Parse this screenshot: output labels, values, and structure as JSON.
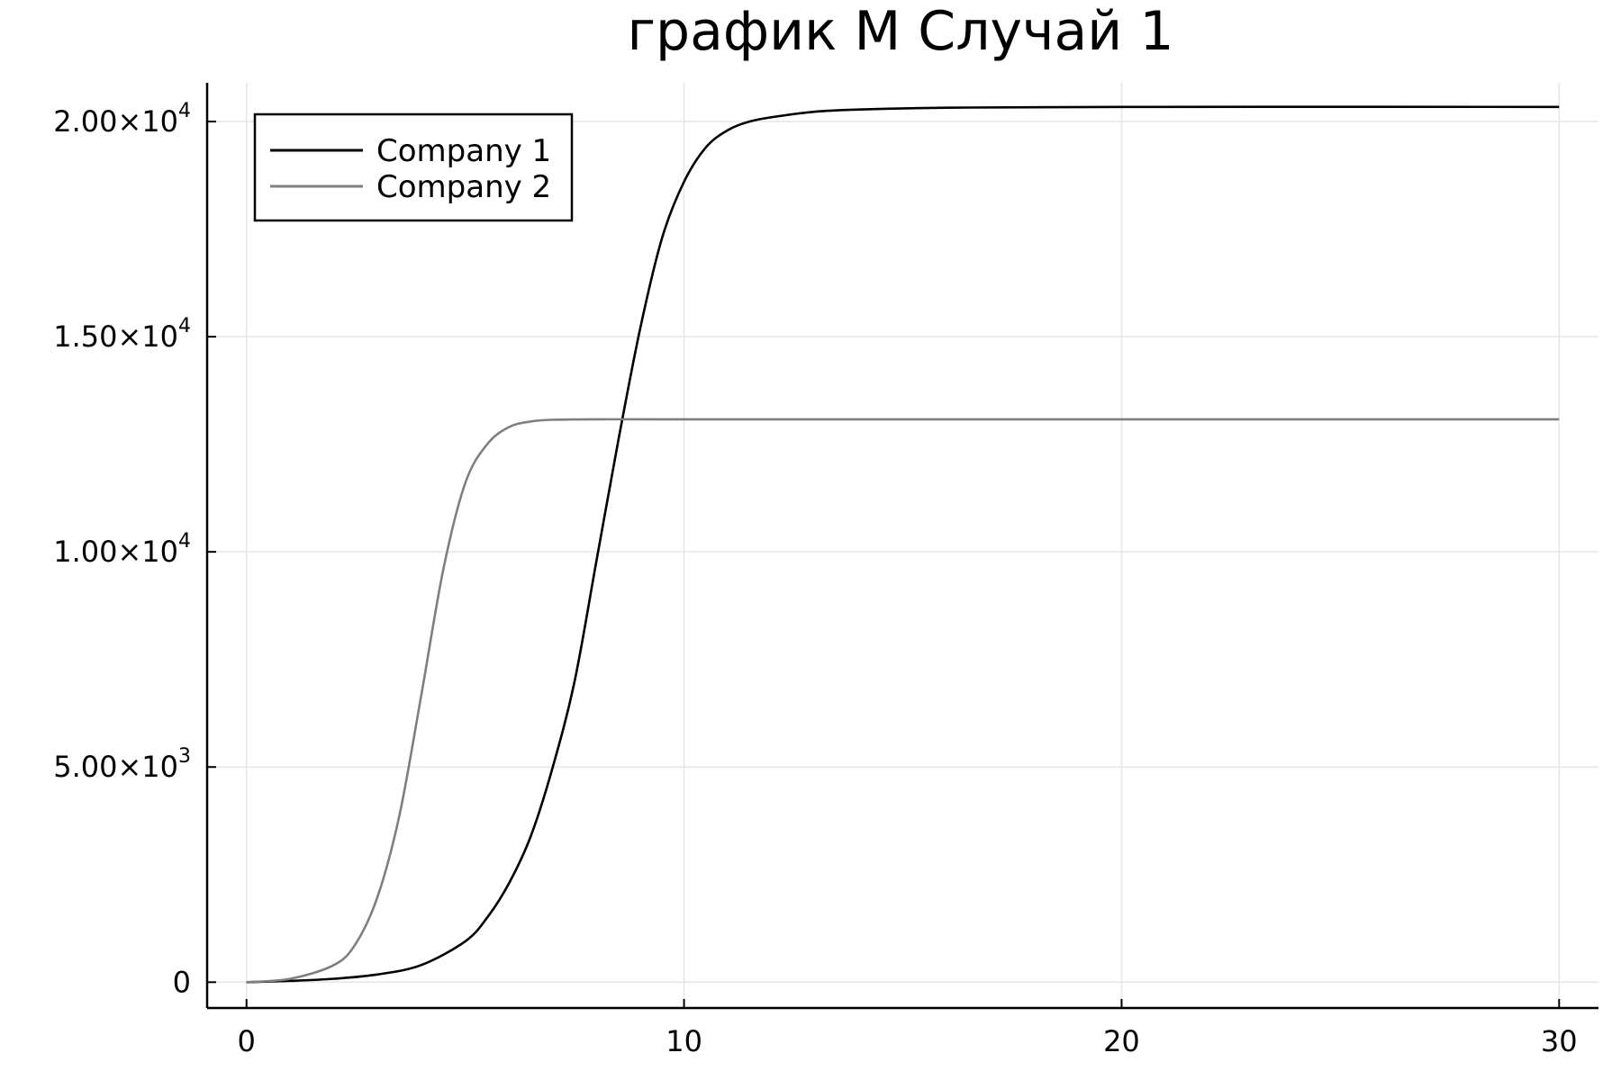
{
  "chart_data": {
    "type": "line",
    "title": "график M Случай 1",
    "xlabel": "",
    "ylabel": "",
    "xlim": [
      -0.9,
      30.9
    ],
    "ylim": [
      -600,
      20900
    ],
    "x_ticks": [
      {
        "value": 0,
        "label": "0"
      },
      {
        "value": 10,
        "label": "10"
      },
      {
        "value": 20,
        "label": "20"
      },
      {
        "value": 30,
        "label": "30"
      }
    ],
    "y_ticks": [
      {
        "value": 0,
        "label": "0",
        "exp": ""
      },
      {
        "value": 5000,
        "label": "5.00×10",
        "exp": "3"
      },
      {
        "value": 10000,
        "label": "1.00×10",
        "exp": "4"
      },
      {
        "value": 15000,
        "label": "1.50×10",
        "exp": "4"
      },
      {
        "value": 20000,
        "label": "2.00×10",
        "exp": "4"
      }
    ],
    "grid": true,
    "legend": {
      "position": "top-left"
    },
    "series": [
      {
        "name": "Company 1",
        "color": "#000000",
        "x": [
          0,
          1,
          2,
          3,
          4,
          5,
          5.5,
          6,
          6.5,
          7,
          7.5,
          8,
          8.5,
          9,
          9.5,
          10,
          10.5,
          11,
          11.5,
          12,
          13,
          14,
          16,
          20,
          30
        ],
        "y": [
          0,
          30,
          80,
          180,
          400,
          950,
          1500,
          2300,
          3400,
          5000,
          7000,
          9800,
          12600,
          15200,
          17300,
          18600,
          19400,
          19800,
          20000,
          20100,
          20230,
          20280,
          20320,
          20340,
          20340
        ]
      },
      {
        "name": "Company 2",
        "color": "#7f7f7f",
        "x": [
          0,
          1,
          2,
          2.5,
          3,
          3.5,
          4,
          4.5,
          5,
          5.5,
          6,
          6.5,
          7,
          8,
          10,
          20,
          30
        ],
        "y": [
          0,
          80,
          400,
          900,
          2000,
          3900,
          6700,
          9600,
          11600,
          12500,
          12900,
          13030,
          13070,
          13080,
          13080,
          13080,
          13080
        ]
      }
    ]
  }
}
